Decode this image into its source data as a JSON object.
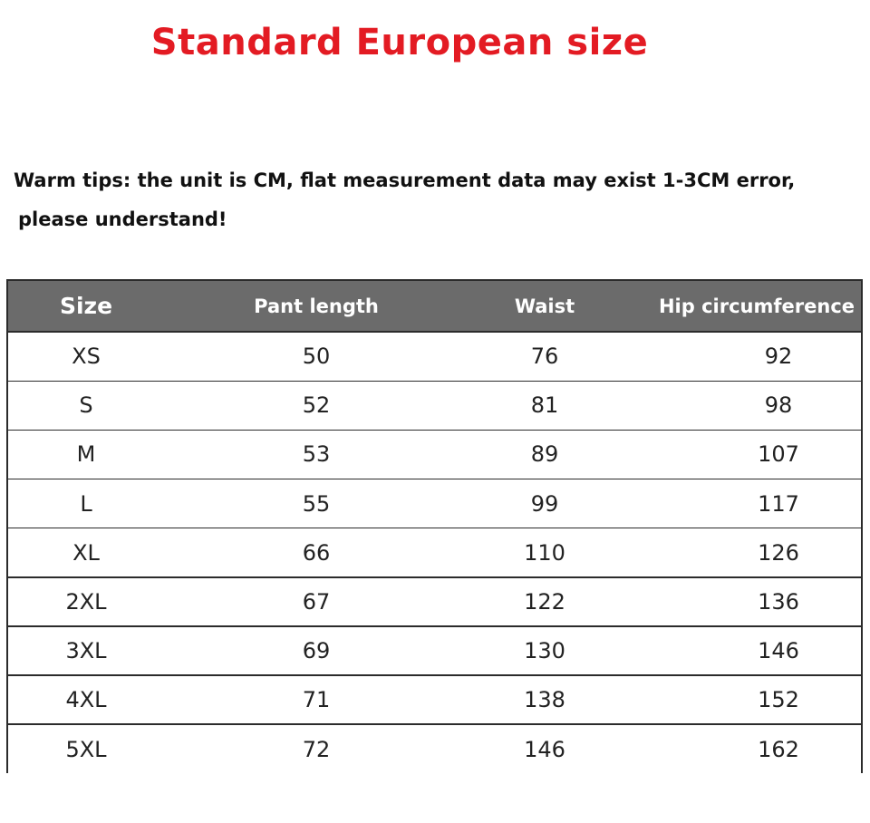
{
  "title": "Standard European size",
  "tips": {
    "line1": "Warm tips: the unit is CM, flat measurement data may exist 1-3CM error,",
    "line2": "please understand!"
  },
  "colors": {
    "title": "#e31b23",
    "header_bg": "#6b6b6b"
  },
  "table": {
    "headers": [
      "Size",
      "Pant length",
      "Waist",
      "Hip circumference"
    ],
    "rows": [
      [
        "XS",
        "50",
        "76",
        "92"
      ],
      [
        "S",
        "52",
        "81",
        "98"
      ],
      [
        "M",
        "53",
        "89",
        "107"
      ],
      [
        "L",
        "55",
        "99",
        "117"
      ],
      [
        "XL",
        "66",
        "110",
        "126"
      ],
      [
        "2XL",
        "67",
        "122",
        "136"
      ],
      [
        "3XL",
        "69",
        "130",
        "146"
      ],
      [
        "4XL",
        "71",
        "138",
        "152"
      ],
      [
        "5XL",
        "72",
        "146",
        "162"
      ]
    ]
  }
}
